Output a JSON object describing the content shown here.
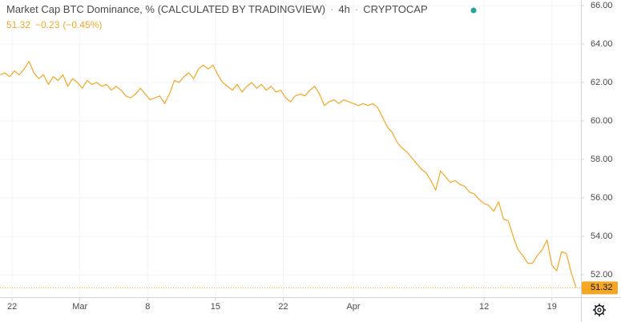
{
  "chart_data": {
    "type": "line",
    "title": "Market Cap BTC Dominance, % (CALCULATED BY TRADINGVIEW)",
    "interval": "4h",
    "source": "CRYPTOCAP",
    "change": "−0.23",
    "change_percent": "(−0.45%)",
    "last_price": {
      "value": 51.32,
      "label": "51.32"
    },
    "color": "#f5a623",
    "values": [
      62.4,
      62.5,
      62.3,
      62.6,
      62.4,
      62.7,
      63.1,
      62.5,
      62.2,
      62.4,
      61.9,
      62.3,
      62.1,
      62.4,
      61.8,
      62.2,
      62.0,
      61.7,
      62.1,
      61.9,
      62.0,
      61.8,
      61.9,
      61.6,
      61.8,
      61.6,
      61.3,
      61.2,
      61.4,
      61.7,
      61.4,
      61.1,
      61.2,
      61.3,
      60.9,
      61.4,
      62.1,
      62.0,
      62.3,
      62.5,
      62.2,
      62.7,
      62.9,
      62.7,
      62.9,
      62.4,
      62.0,
      61.8,
      61.6,
      61.9,
      61.5,
      61.8,
      62.0,
      61.7,
      61.9,
      61.6,
      61.8,
      61.5,
      61.6,
      61.2,
      61.0,
      61.3,
      61.4,
      61.3,
      61.6,
      61.8,
      61.4,
      60.8,
      61.0,
      61.1,
      60.9,
      61.1,
      61.0,
      60.9,
      60.8,
      60.9,
      60.8,
      60.9,
      60.7,
      60.2,
      59.7,
      59.4,
      58.9,
      58.6,
      58.4,
      58.1,
      57.8,
      57.5,
      57.3,
      56.9,
      56.4,
      57.4,
      57.1,
      56.8,
      56.9,
      56.7,
      56.6,
      56.3,
      56.2,
      55.9,
      55.7,
      55.6,
      55.3,
      55.8,
      54.9,
      54.8,
      54.0,
      53.3,
      53.0,
      52.6,
      52.6,
      53.0,
      53.3,
      53.8,
      52.5,
      52.2,
      53.2,
      53.1,
      52.1,
      51.32
    ],
    "xlim": [
      0,
      120
    ],
    "xticks": [
      {
        "value": 2.5,
        "label": "22"
      },
      {
        "value": 16.5,
        "label": "Mar"
      },
      {
        "value": 30.5,
        "label": "8"
      },
      {
        "value": 44.5,
        "label": "15"
      },
      {
        "value": 58.5,
        "label": "22"
      },
      {
        "value": 73,
        "label": "Apr"
      },
      {
        "value": 100,
        "label": "12"
      },
      {
        "value": 114,
        "label": "19"
      }
    ],
    "ylim": [
      50.875,
      66.29
    ],
    "yticks": [
      {
        "value": 52,
        "label": "52.00"
      },
      {
        "value": 54,
        "label": "54.00"
      },
      {
        "value": 56,
        "label": "56.00"
      },
      {
        "value": 58,
        "label": "58.00"
      },
      {
        "value": 60,
        "label": "60.00"
      },
      {
        "value": 62,
        "label": "62.00"
      },
      {
        "value": 64,
        "label": "64.00"
      },
      {
        "value": 66,
        "label": "66.00"
      }
    ],
    "grid": true
  }
}
